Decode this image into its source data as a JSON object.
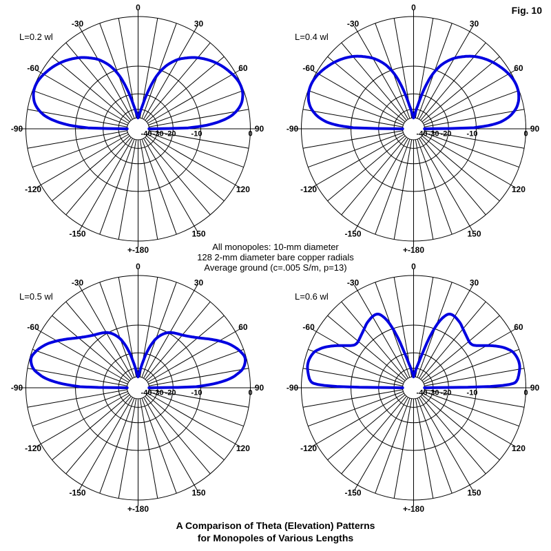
{
  "fig_label": "Fig. 10",
  "annotation": {
    "line1": "All monopoles: 10-mm diameter",
    "line2": "128 2-mm diameter bare copper radials",
    "line3": "Average ground (c=.005 S/m, p=13)"
  },
  "caption": {
    "line1": "A Comparison of Theta (Elevation) Patterns",
    "line2": "for Monopoles of Various Lengths"
  },
  "chart_data": {
    "type": "polar",
    "description": "Four EZNEC-style elevation (theta) radiation patterns of vertical monopoles over average ground; pattern is symmetric about the vertical axis; radial scale is log (ARRL style), 0 dB at outer ring down to -40 dB at center hole",
    "trace_color": "#0000E0",
    "grid_color": "#000000",
    "floor_db": -40,
    "outer_ring_db": 0,
    "rings_db": [
      -10,
      -20,
      -30
    ],
    "radial_scale": "r = R * 0.89^(|dB|/2)",
    "angle_step_gridlines_deg": 10,
    "angle_ticks": [
      {
        "deg": 0,
        "label": "0"
      },
      {
        "deg": 30,
        "label": "30"
      },
      {
        "deg": 60,
        "label": "60"
      },
      {
        "deg": 90,
        "label": "90"
      },
      {
        "deg": 120,
        "label": "120"
      },
      {
        "deg": 150,
        "label": "150"
      },
      {
        "deg": 180,
        "label": "+-180"
      },
      {
        "deg": -150,
        "label": "-150"
      },
      {
        "deg": -120,
        "label": "-120"
      },
      {
        "deg": -90,
        "label": "-90"
      },
      {
        "deg": -60,
        "label": "-60"
      },
      {
        "deg": -30,
        "label": "-30"
      }
    ],
    "radial_labels": [
      {
        "db": -40,
        "label": "-40"
      },
      {
        "db": -30,
        "label": "-30"
      },
      {
        "db": -20,
        "label": "-20"
      },
      {
        "db": -10,
        "label": "-10"
      },
      {
        "db": 0,
        "label": "0"
      }
    ],
    "plots": [
      {
        "title": "L=0.2 wl",
        "pattern_db_half_deg": [
          [
            0,
            -40
          ],
          [
            3,
            -37
          ],
          [
            6,
            -33.5
          ],
          [
            8,
            -31
          ],
          [
            10,
            -28
          ],
          [
            12,
            -24
          ],
          [
            14,
            -20
          ],
          [
            16,
            -16.5
          ],
          [
            18,
            -13.5
          ],
          [
            20,
            -11.3
          ],
          [
            23,
            -9
          ],
          [
            26,
            -7.4
          ],
          [
            30,
            -5.8
          ],
          [
            34,
            -4.7
          ],
          [
            38,
            -3.7
          ],
          [
            42,
            -2.9
          ],
          [
            46,
            -2.2
          ],
          [
            50,
            -1.6
          ],
          [
            54,
            -1.1
          ],
          [
            58,
            -0.7
          ],
          [
            62,
            -0.35
          ],
          [
            66,
            -0.15
          ],
          [
            70,
            -0.2
          ],
          [
            73,
            -0.45
          ],
          [
            76,
            -0.9
          ],
          [
            79,
            -1.7
          ],
          [
            82,
            -3
          ],
          [
            84,
            -4.5
          ],
          [
            86,
            -6.8
          ],
          [
            87.5,
            -9.5
          ],
          [
            88.6,
            -13
          ],
          [
            89.3,
            -17
          ],
          [
            90,
            -40
          ]
        ]
      },
      {
        "title": "L=0.4 wl",
        "pattern_db_half_deg": [
          [
            0,
            -40
          ],
          [
            3,
            -37
          ],
          [
            6,
            -33
          ],
          [
            8,
            -30
          ],
          [
            10,
            -27
          ],
          [
            12,
            -23
          ],
          [
            14,
            -19
          ],
          [
            16,
            -15.5
          ],
          [
            18,
            -12.7
          ],
          [
            20,
            -10.7
          ],
          [
            23,
            -8.5
          ],
          [
            26,
            -7
          ],
          [
            30,
            -5.5
          ],
          [
            34,
            -4.4
          ],
          [
            38,
            -3.4
          ],
          [
            42,
            -2.6
          ],
          [
            46,
            -1.95
          ],
          [
            50,
            -1.4
          ],
          [
            54,
            -0.95
          ],
          [
            58,
            -0.55
          ],
          [
            62,
            -0.25
          ],
          [
            66,
            -0.1
          ],
          [
            70,
            -0.15
          ],
          [
            73,
            -0.35
          ],
          [
            76,
            -0.7
          ],
          [
            79,
            -1.3
          ],
          [
            82,
            -2.3
          ],
          [
            84,
            -3.3
          ],
          [
            86,
            -4.8
          ],
          [
            87.5,
            -7
          ],
          [
            88.6,
            -10
          ],
          [
            89.3,
            -14
          ],
          [
            90,
            -40
          ]
        ]
      },
      {
        "title": "L=0.5 wl",
        "pattern_db_half_deg": [
          [
            0,
            -40
          ],
          [
            3,
            -37
          ],
          [
            5,
            -34
          ],
          [
            7,
            -31
          ],
          [
            9,
            -27.5
          ],
          [
            11,
            -24
          ],
          [
            13,
            -20.5
          ],
          [
            15,
            -17.8
          ],
          [
            17,
            -15.6
          ],
          [
            20,
            -13.2
          ],
          [
            24,
            -11.3
          ],
          [
            28,
            -10.1
          ],
          [
            32,
            -9.4
          ],
          [
            36,
            -8.9
          ],
          [
            40,
            -8.4
          ],
          [
            44,
            -7.7
          ],
          [
            48,
            -6.8
          ],
          [
            52,
            -5.7
          ],
          [
            56,
            -4.4
          ],
          [
            60,
            -3.1
          ],
          [
            64,
            -1.9
          ],
          [
            68,
            -1
          ],
          [
            71,
            -0.5
          ],
          [
            74,
            -0.2
          ],
          [
            77,
            -0.4
          ],
          [
            80,
            -1
          ],
          [
            82,
            -1.9
          ],
          [
            84,
            -3.1
          ],
          [
            86,
            -5.2
          ],
          [
            87.5,
            -7.8
          ],
          [
            88.7,
            -11
          ],
          [
            89.4,
            -15
          ],
          [
            90,
            -40
          ]
        ]
      },
      {
        "title": "L=0.6 wl",
        "pattern_db_half_deg": [
          [
            0,
            -40
          ],
          [
            4,
            -35
          ],
          [
            8,
            -30
          ],
          [
            11,
            -26
          ],
          [
            13,
            -22.5
          ],
          [
            15,
            -18.5
          ],
          [
            17,
            -14
          ],
          [
            19,
            -10.5
          ],
          [
            21,
            -8
          ],
          [
            23,
            -6.5
          ],
          [
            25,
            -5.6
          ],
          [
            27,
            -5.3
          ],
          [
            30,
            -5.35
          ],
          [
            33,
            -5.6
          ],
          [
            36,
            -5.9
          ],
          [
            40,
            -6.5
          ],
          [
            44,
            -7
          ],
          [
            48,
            -7.4
          ],
          [
            51,
            -7.6
          ],
          [
            54,
            -7.4
          ],
          [
            56,
            -6.8
          ],
          [
            58,
            -5.9
          ],
          [
            60,
            -4.9
          ],
          [
            62,
            -3.9
          ],
          [
            64,
            -3
          ],
          [
            66,
            -2.2
          ],
          [
            68,
            -1.6
          ],
          [
            70,
            -1.1
          ],
          [
            73,
            -0.75
          ],
          [
            76,
            -0.6
          ],
          [
            79,
            -0.65
          ],
          [
            82,
            -0.9
          ],
          [
            84,
            -1.1
          ],
          [
            86,
            -1.4
          ],
          [
            87.5,
            -2
          ],
          [
            88.4,
            -3.6
          ],
          [
            89,
            -6.5
          ],
          [
            89.4,
            -11
          ],
          [
            89.7,
            -18
          ],
          [
            90,
            -40
          ]
        ]
      }
    ]
  }
}
